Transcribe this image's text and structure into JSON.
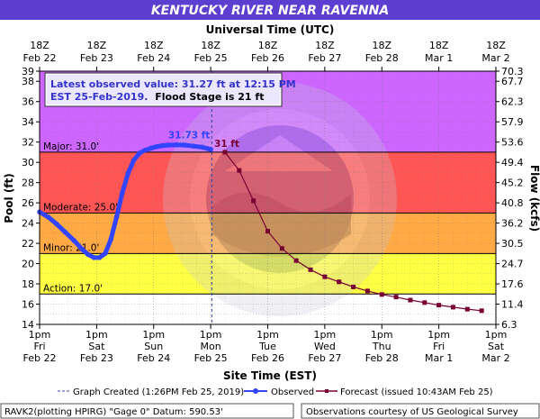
{
  "header": {
    "title": "KENTUCKY RIVER NEAR RAVENNA",
    "top_axis_title": "Universal Time (UTC)",
    "bottom_axis_title": "Site Time (EST)",
    "left_axis_title": "Pool (ft)",
    "right_axis_title": "Flow (kcfs)"
  },
  "info_box": {
    "line1": "Latest observed value: 31.27 ft at 12:15 PM",
    "line2_blue": "EST 25-Feb-2019.",
    "line2_black": "Flood Stage is 21 ft"
  },
  "legend": {
    "created": "Graph Created (1:26PM Feb 25, 2019)",
    "observed": "Observed",
    "forecast": "Forecast (issued 10:43AM Feb 25)"
  },
  "footer": {
    "left": "RAVK2(plotting HPIRG) \"Gage 0\" Datum: 590.53'",
    "right": "Observations courtesy of US Geological Survey"
  },
  "colors": {
    "title_bg": "#5c3fd0",
    "major_band": "#cc66ff",
    "moderate_band": "#ff5555",
    "minor_band": "#ffaa44",
    "action_band": "#ffff44",
    "observed": "#3344ff",
    "forecast": "#770033"
  },
  "chart_data": {
    "type": "line",
    "title": "KENTUCKY RIVER NEAR RAVENNA",
    "xlabel": "Site Time (EST)",
    "ylabel": "Pool (ft)",
    "y2label": "Flow (kcfs)",
    "ylim": [
      14,
      39
    ],
    "yticks": [
      14,
      16,
      18,
      20,
      22,
      24,
      26,
      28,
      30,
      32,
      34,
      36,
      38,
      39
    ],
    "flow_ticks": [
      {
        "stage": 14,
        "label": "6.3"
      },
      {
        "stage": 16,
        "label": "11.4"
      },
      {
        "stage": 18,
        "label": "17.6"
      },
      {
        "stage": 20,
        "label": "24.7"
      },
      {
        "stage": 22,
        "label": "30.5"
      },
      {
        "stage": 24,
        "label": "36.2"
      },
      {
        "stage": 26,
        "label": "40.8"
      },
      {
        "stage": 28,
        "label": "45.2"
      },
      {
        "stage": 30,
        "label": "49.4"
      },
      {
        "stage": 32,
        "label": "53.6"
      },
      {
        "stage": 34,
        "label": "57.9"
      },
      {
        "stage": 36,
        "label": "62.3"
      },
      {
        "stage": 38,
        "label": "67.7"
      },
      {
        "stage": 39,
        "label": "70.3"
      }
    ],
    "x_ticks_est": [
      {
        "line1": "1pm",
        "line2": "Fri",
        "line3": "Feb 22"
      },
      {
        "line1": "1pm",
        "line2": "Sat",
        "line3": "Feb 23"
      },
      {
        "line1": "1pm",
        "line2": "Sun",
        "line3": "Feb 24"
      },
      {
        "line1": "1pm",
        "line2": "Mon",
        "line3": "Feb 25"
      },
      {
        "line1": "1pm",
        "line2": "Tue",
        "line3": "Feb 26"
      },
      {
        "line1": "1pm",
        "line2": "Wed",
        "line3": "Feb 27"
      },
      {
        "line1": "1pm",
        "line2": "Thu",
        "line3": "Feb 28"
      },
      {
        "line1": "1pm",
        "line2": "Fri",
        "line3": "Mar 1"
      },
      {
        "line1": "1pm",
        "line2": "Sat",
        "line3": "Mar 2"
      }
    ],
    "x_ticks_utc": [
      {
        "line1": "18Z",
        "line2": "Feb 22"
      },
      {
        "line1": "18Z",
        "line2": "Feb 23"
      },
      {
        "line1": "18Z",
        "line2": "Feb 24"
      },
      {
        "line1": "18Z",
        "line2": "Feb 25"
      },
      {
        "line1": "18Z",
        "line2": "Feb 26"
      },
      {
        "line1": "18Z",
        "line2": "Feb 27"
      },
      {
        "line1": "18Z",
        "line2": "Feb 28"
      },
      {
        "line1": "18Z",
        "line2": "Mar 1"
      },
      {
        "line1": "18Z",
        "line2": "Mar 2"
      }
    ],
    "flood_categories": [
      {
        "name": "Major",
        "label": "Major: 31.0'",
        "from": 31,
        "to": 39
      },
      {
        "name": "Moderate",
        "label": "Moderate: 25.0'",
        "from": 25,
        "to": 31
      },
      {
        "name": "Minor",
        "label": "Minor: 21.0'",
        "from": 21,
        "to": 25
      },
      {
        "name": "Action",
        "label": "Action: 17.0'",
        "from": 17,
        "to": 21
      }
    ],
    "graph_created_day": 3.02,
    "series": [
      {
        "name": "Observed",
        "x_unit": "days since Feb 22 1pm EST",
        "x": [
          0.0,
          0.15,
          0.3,
          0.45,
          0.6,
          0.75,
          0.85,
          0.95,
          1.05,
          1.15,
          1.25,
          1.35,
          1.45,
          1.55,
          1.65,
          1.75,
          1.85,
          1.95,
          2.05,
          2.15,
          2.25,
          2.4,
          2.55,
          2.7,
          2.85,
          2.95,
          3.0
        ],
        "y": [
          25.1,
          24.6,
          23.9,
          23.1,
          22.3,
          21.4,
          20.9,
          20.6,
          20.6,
          21.0,
          22.4,
          24.6,
          27.0,
          28.9,
          30.2,
          30.9,
          31.2,
          31.4,
          31.55,
          31.65,
          31.7,
          31.73,
          31.7,
          31.6,
          31.5,
          31.35,
          31.27
        ]
      },
      {
        "name": "Forecast",
        "label_first": "31 ft",
        "x_unit": "days since Feb 22 1pm EST",
        "x": [
          3.25,
          3.5,
          3.75,
          4.0,
          4.25,
          4.5,
          4.75,
          5.0,
          5.25,
          5.5,
          5.75,
          6.0,
          6.25,
          6.5,
          6.75,
          7.0,
          7.25,
          7.5,
          7.75
        ],
        "y": [
          31.0,
          29.2,
          26.2,
          23.2,
          21.5,
          20.3,
          19.4,
          18.7,
          18.2,
          17.7,
          17.3,
          16.95,
          16.7,
          16.4,
          16.15,
          15.9,
          15.7,
          15.5,
          15.35
        ]
      }
    ],
    "annotations": [
      {
        "text": "31.73 ft",
        "x": 2.4,
        "y": 31.73
      }
    ]
  }
}
